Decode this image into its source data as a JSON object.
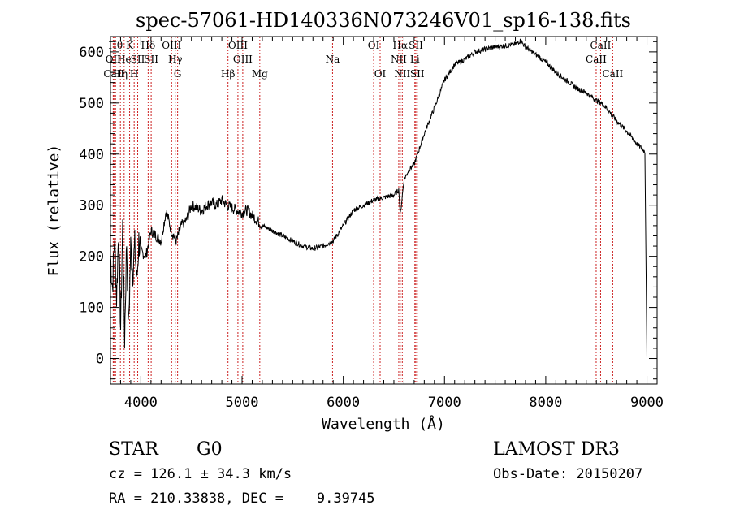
{
  "chart_data": {
    "type": "line",
    "title": "spec-57061-HD140336N073246V01_sp16-138.fits",
    "xlabel": "Wavelength (Å)",
    "ylabel": "Flux (relative)",
    "xlim": [
      3700,
      9100
    ],
    "ylim": [
      -50,
      630
    ],
    "xticks": [
      4000,
      5000,
      6000,
      7000,
      8000,
      9000
    ],
    "yticks": [
      0,
      100,
      200,
      300,
      400,
      500,
      600
    ],
    "grid": false,
    "series": [
      {
        "name": "flux",
        "x": [
          3700,
          3720,
          3740,
          3760,
          3780,
          3800,
          3820,
          3840,
          3860,
          3880,
          3900,
          3920,
          3940,
          3960,
          3980,
          4000,
          4050,
          4100,
          4150,
          4200,
          4250,
          4300,
          4350,
          4400,
          4450,
          4500,
          4550,
          4600,
          4650,
          4700,
          4750,
          4800,
          4850,
          4900,
          4950,
          5000,
          5050,
          5100,
          5150,
          5200,
          5300,
          5400,
          5500,
          5600,
          5700,
          5800,
          5900,
          6000,
          6100,
          6200,
          6300,
          6400,
          6500,
          6550,
          6563,
          6600,
          6650,
          6700,
          6750,
          6800,
          6900,
          7000,
          7100,
          7200,
          7300,
          7400,
          7500,
          7600,
          7700,
          7750,
          7800,
          7900,
          8000,
          8100,
          8200,
          8300,
          8400,
          8500,
          8550,
          8600,
          8700,
          8800,
          8900,
          8980,
          9000
        ],
        "y": [
          200,
          140,
          240,
          120,
          250,
          60,
          260,
          40,
          230,
          60,
          220,
          170,
          220,
          150,
          230,
          210,
          200,
          250,
          240,
          230,
          290,
          250,
          230,
          260,
          270,
          300,
          295,
          290,
          300,
          305,
          300,
          310,
          300,
          295,
          290,
          285,
          290,
          280,
          270,
          260,
          250,
          240,
          230,
          220,
          215,
          220,
          230,
          260,
          290,
          300,
          310,
          315,
          320,
          330,
          280,
          350,
          370,
          380,
          410,
          440,
          490,
          545,
          575,
          585,
          600,
          605,
          610,
          612,
          615,
          622,
          610,
          595,
          580,
          560,
          545,
          530,
          520,
          505,
          500,
          490,
          465,
          445,
          420,
          405,
          0
        ]
      }
    ],
    "line_markers": [
      {
        "label": "OII",
        "x": 3727,
        "row": 2
      },
      {
        "label": "CaII",
        "x": 3734,
        "row": 3
      },
      {
        "label": "Hθ",
        "x": 3750,
        "row": 1
      },
      {
        "label": "Hη",
        "x": 3798,
        "row": 3
      },
      {
        "label": "He",
        "x": 3835,
        "row": 2
      },
      {
        "label": "K",
        "x": 3889,
        "row": 1
      },
      {
        "label": "H",
        "x": 3934,
        "row": 3
      },
      {
        "label": "SII",
        "x": 3969,
        "row": 2
      },
      {
        "label": "Hδ",
        "x": 4072,
        "row": 1
      },
      {
        "label": "SII",
        "x": 4102,
        "row": 2
      },
      {
        "label": "OIII",
        "x": 4304,
        "row": 1
      },
      {
        "label": "Hγ",
        "x": 4340,
        "row": 2
      },
      {
        "label": "G",
        "x": 4363,
        "row": 3
      },
      {
        "label": "Hβ",
        "x": 4861,
        "row": 3
      },
      {
        "label": "OIII",
        "x": 4959,
        "row": 1
      },
      {
        "label": "OIII",
        "x": 5007,
        "row": 2
      },
      {
        "label": "Mg",
        "x": 5175,
        "row": 3
      },
      {
        "label": "Na",
        "x": 5894,
        "row": 2
      },
      {
        "label": "OI",
        "x": 6300,
        "row": 1
      },
      {
        "label": "OI",
        "x": 6364,
        "row": 3
      },
      {
        "label": "NII",
        "x": 6548,
        "row": 2
      },
      {
        "label": "Hα",
        "x": 6563,
        "row": 1
      },
      {
        "label": "NII",
        "x": 6583,
        "row": 3
      },
      {
        "label": "SII",
        "x": 6717,
        "row": 1
      },
      {
        "label": "Li",
        "x": 6707,
        "row": 2
      },
      {
        "label": "SII",
        "x": 6731,
        "row": 3
      },
      {
        "label": "CaII",
        "x": 8498,
        "row": 2
      },
      {
        "label": "CaII",
        "x": 8542,
        "row": 1
      },
      {
        "label": "CaII",
        "x": 8662,
        "row": 3
      }
    ]
  },
  "info": {
    "class": "STAR",
    "subclass": "G0",
    "survey": "LAMOST DR3",
    "cz": "cz = 126.1 ± 34.3 km/s",
    "obs_date": "Obs-Date: 20150207",
    "coords": "RA = 210.33838, DEC =    9.39745"
  },
  "colors": {
    "marker": "#cc2222",
    "curve": "#000000"
  }
}
